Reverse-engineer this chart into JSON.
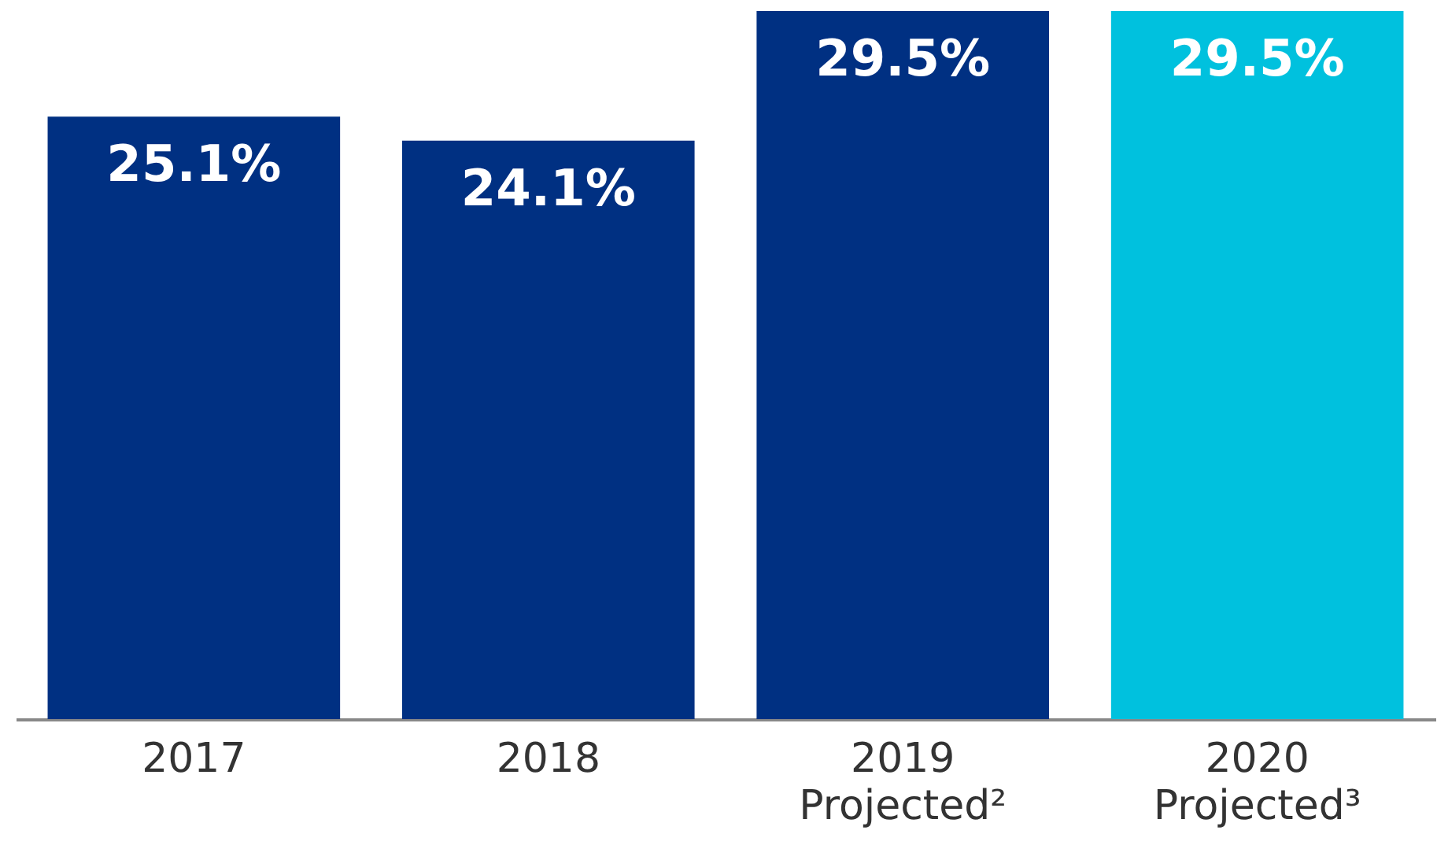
{
  "chart_data": {
    "type": "bar",
    "categories": [
      "2017",
      "2018",
      "2019\nProjected²",
      "2020\nProjected³"
    ],
    "values": [
      25.1,
      24.1,
      29.5,
      29.5
    ],
    "colors": [
      "#003082",
      "#003082",
      "#003082",
      "#00c1de"
    ],
    "value_labels": [
      "25.1%",
      "24.1%",
      "29.5%",
      "29.5%"
    ],
    "ylim": [
      0,
      29.5
    ],
    "grid": false
  }
}
